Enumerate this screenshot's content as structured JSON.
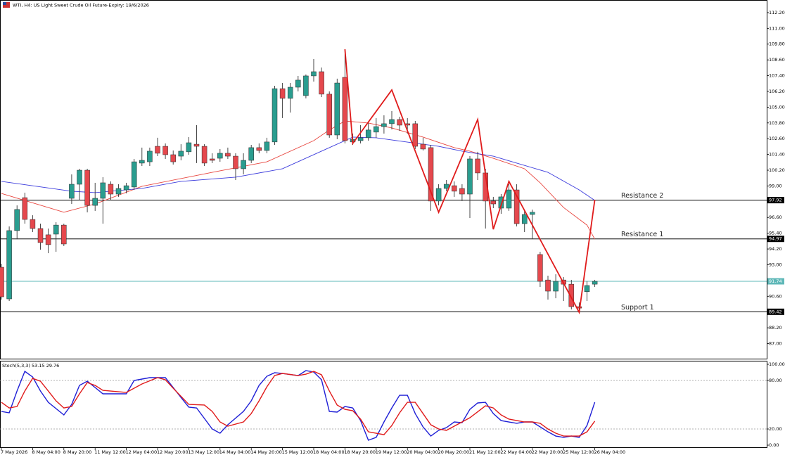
{
  "chart_data": [
    {
      "type": "candlestick",
      "title": "WTI, H4:  US Light Sweet Crude Oil Future-Expiry: 19/6/2026",
      "categories": [
        "7 May 2026",
        null,
        null,
        null,
        "8 May 04:00",
        null,
        null,
        null,
        "8 May 20:00",
        null,
        null,
        null,
        "11 May 12:00",
        null,
        null,
        null,
        "12 May 04:00",
        null,
        null,
        null,
        "12 May 20:00",
        null,
        null,
        null,
        "13 May 12:00",
        null,
        null,
        null,
        "14 May 04:00",
        null,
        null,
        null,
        "14 May 20:00",
        null,
        null,
        null,
        "15 May 12:00",
        null,
        null,
        null,
        "18 May 04:00",
        null,
        null,
        null,
        "18 May 20:00",
        null,
        null,
        null,
        "19 May 12:00",
        null,
        null,
        null,
        "20 May 04:00",
        null,
        null,
        null,
        "20 May 20:00",
        null,
        null,
        null,
        "21 May 12:00",
        null,
        null,
        null,
        "22 May 04:00",
        null,
        null,
        null,
        "22 May 20:00",
        null,
        null,
        null,
        "25 May 12:00",
        null,
        null,
        null,
        "26 May 04:00"
      ],
      "open": [
        92.81,
        90.4,
        95.6,
        98.11,
        96.45,
        95.76,
        95.28,
        95.33,
        96.02,
        98.06,
        99.13,
        100.2,
        97.52,
        98.06,
        99.13,
        98.38,
        98.7,
        98.92,
        100.74,
        100.84,
        102.02,
        102.02,
        101.38,
        101.27,
        101.6,
        102.18,
        102.02,
        101.06,
        101.11,
        101.49,
        101.27,
        100.31,
        100.95,
        101.92,
        101.7,
        102.35,
        106.41,
        105.67,
        106.52,
        105.88,
        107.38,
        107.7,
        105.99,
        102.88,
        107.27,
        102.35,
        102.45,
        102.67,
        103.1,
        103.52,
        103.74,
        104.06,
        103.74,
        103.74,
        102.18,
        101.92,
        97.85,
        98.81,
        99.02,
        98.81,
        98.38,
        101.06,
        99.99,
        97.85,
        97.31,
        97.31,
        98.7,
        96.13,
        96.83,
        93.78,
        91.84,
        90.99,
        91.84,
        91.52,
        89.81,
        90.95,
        91.52
      ],
      "high": [
        93.08,
        95.92,
        97.52,
        98.49,
        96.77,
        96.13,
        95.76,
        96.24,
        96.13,
        99.88,
        100.31,
        100.31,
        99.24,
        99.67,
        99.35,
        99.13,
        99.24,
        101.06,
        101.92,
        101.92,
        102.67,
        102.24,
        101.7,
        102.18,
        102.72,
        103.63,
        102.18,
        101.49,
        101.81,
        101.92,
        101.49,
        101.49,
        102.13,
        102.24,
        102.67,
        106.63,
        106.84,
        106.84,
        107.38,
        107.49,
        108.66,
        108.02,
        106.2,
        107.17,
        109.41,
        102.99,
        103.63,
        103.84,
        104.17,
        104.38,
        104.7,
        104.27,
        104.17,
        103.95,
        102.67,
        102.13,
        99.13,
        99.45,
        99.35,
        99.13,
        101.27,
        101.6,
        100.31,
        98.17,
        98.38,
        99.13,
        99.13,
        97.1,
        97.2,
        93.99,
        92.17,
        92.28,
        92.06,
        91.85,
        90.13,
        91.74,
        91.85
      ],
      "low": [
        90.35,
        90.24,
        94.95,
        96.13,
        95.49,
        94.15,
        93.88,
        93.99,
        94.42,
        97.63,
        97.9,
        96.99,
        97.1,
        96.13,
        97.9,
        98.17,
        98.44,
        98.7,
        100.52,
        100.52,
        101.27,
        101.06,
        100.63,
        100.95,
        101.38,
        100.74,
        100.52,
        100.74,
        100.84,
        101.06,
        99.45,
        99.88,
        100.74,
        101.49,
        101.49,
        102.13,
        104.17,
        104.59,
        106.2,
        105.67,
        106.95,
        105.77,
        102.67,
        102.56,
        102.24,
        102.13,
        102.24,
        102.45,
        102.67,
        102.99,
        103.31,
        103.2,
        102.99,
        101.81,
        101.7,
        97.1,
        97.52,
        98.6,
        98.17,
        97.85,
        96.56,
        99.45,
        95.76,
        97.31,
        96.88,
        97.1,
        95.92,
        95.49,
        94.95,
        91.31,
        90.35,
        90.45,
        90.24,
        89.6,
        89.38,
        90.24,
        91.31
      ],
      "close": [
        90.56,
        95.6,
        97.21,
        96.45,
        95.76,
        94.69,
        94.53,
        96.02,
        94.58,
        99.13,
        100.2,
        97.52,
        98.06,
        99.24,
        98.38,
        98.81,
        99.02,
        100.84,
        100.95,
        101.65,
        101.49,
        101.38,
        100.84,
        101.65,
        102.29,
        102.02,
        100.74,
        100.95,
        101.49,
        101.27,
        100.31,
        100.95,
        101.92,
        101.7,
        102.35,
        106.41,
        105.67,
        106.52,
        107.06,
        107.38,
        107.7,
        105.99,
        102.88,
        106.84,
        102.45,
        102.56,
        102.67,
        103.26,
        103.52,
        103.74,
        104.06,
        103.63,
        103.63,
        102.02,
        101.81,
        97.85,
        98.81,
        99.13,
        98.6,
        98.38,
        101.06,
        99.99,
        97.85,
        97.63,
        98.17,
        98.7,
        96.13,
        96.83,
        97.0,
        91.74,
        90.99,
        91.74,
        91.52,
        89.81,
        89.7,
        91.42,
        91.74
      ],
      "up_color": "#2a9d8f",
      "down_color": "#e5484d",
      "ylim": [
        85.85,
        113.16
      ],
      "yticks": [
        {
          "value": 112.2,
          "label": "112.20"
        },
        {
          "value": 111,
          "label": "111.00"
        },
        {
          "value": 109.8,
          "label": "109.80"
        },
        {
          "value": 108.6,
          "label": "108.60"
        },
        {
          "value": 107.4,
          "label": "107.40"
        },
        {
          "value": 106.2,
          "label": "106.20"
        },
        {
          "value": 105,
          "label": "105.00"
        },
        {
          "value": 103.8,
          "label": "103.80"
        },
        {
          "value": 102.6,
          "label": "102.60"
        },
        {
          "value": 101.4,
          "label": "101.40"
        },
        {
          "value": 100.2,
          "label": "100.20"
        },
        {
          "value": 99,
          "label": "99.00"
        },
        {
          "value": 96.6,
          "label": "96.60"
        },
        {
          "value": 95.4,
          "label": "95.40"
        },
        {
          "value": 94.2,
          "label": "94.20"
        },
        {
          "value": 93,
          "label": "93.00"
        },
        {
          "value": 90.6,
          "label": "90.60"
        },
        {
          "value": 88.2,
          "label": "88.20"
        },
        {
          "value": 87,
          "label": "87.00"
        }
      ],
      "overlays": [
        {
          "color": "#e8463f",
          "x": [
            0,
            8,
            12,
            18,
            27,
            34,
            40,
            42,
            44,
            47,
            50,
            54,
            58,
            60,
            63,
            67,
            69,
            72,
            75,
            76
          ],
          "values": [
            98.43,
            97.0,
            97.63,
            98.97,
            100.04,
            100.84,
            102.45,
            103.26,
            103.95,
            103.79,
            103.42,
            102.72,
            101.92,
            101.65,
            101.11,
            100.31,
            99.24,
            97.36,
            96.02,
            94.95
          ]
        },
        {
          "color": "#3b3bdc",
          "x": [
            0,
            9,
            12,
            18,
            23,
            30,
            36,
            41,
            45,
            48,
            52,
            56,
            59,
            63,
            66,
            70,
            74,
            76
          ],
          "values": [
            99.35,
            98.6,
            98.49,
            98.81,
            99.35,
            99.67,
            100.31,
            101.65,
            102.72,
            102.67,
            102.34,
            102.02,
            101.65,
            101.27,
            100.74,
            100.04,
            98.7,
            97.9
          ]
        }
      ],
      "zigzag": {
        "color": "#e01b1b",
        "x": [
          44,
          45,
          50,
          56,
          61,
          63,
          65,
          74,
          76
        ],
        "values": [
          109.41,
          102.24,
          106.31,
          97.0,
          104.06,
          95.7,
          99.35,
          89.38,
          97.95
        ]
      },
      "levels": [
        {
          "name": "Resistance 2",
          "value": 97.92,
          "color": "#000000"
        },
        {
          "name": "Resistance 1",
          "value": 94.97,
          "color": "#000000"
        },
        {
          "value": 91.74,
          "color": "#5fb8b8"
        },
        {
          "name": "Support 1",
          "value": 89.42,
          "color": "#000000"
        }
      ]
    },
    {
      "type": "line",
      "title": "Stoch(5,3,3) 53.15 29.76",
      "ylim": [
        -2.6,
        103.5
      ],
      "yticks": [
        {
          "value": 100,
          "label": "100.00"
        },
        {
          "value": 80,
          "label": "80.00"
        },
        {
          "value": 20,
          "label": "20.00"
        },
        {
          "value": 0,
          "label": "0.00"
        }
      ],
      "levels": [
        80,
        20
      ],
      "series": [
        {
          "color": "#1f1fd6",
          "x": [
            0,
            1,
            2,
            3,
            4,
            5,
            6,
            8,
            9,
            10,
            11,
            13,
            16,
            17,
            19,
            21,
            23,
            24,
            25,
            27,
            28,
            29,
            31,
            32,
            33,
            34,
            35,
            36,
            38,
            39,
            40,
            41,
            42,
            43,
            44,
            45,
            46,
            47,
            48,
            49,
            50,
            51,
            52,
            53,
            54,
            55,
            56,
            57,
            58,
            59,
            60,
            61,
            62,
            63,
            64,
            65,
            66,
            67,
            68,
            69,
            70,
            71,
            72,
            73,
            74,
            75,
            76
          ],
          "values": [
            41.7,
            40,
            67,
            91.3,
            84.3,
            67,
            53,
            37.4,
            50.4,
            73.9,
            79.1,
            63.5,
            63.5,
            80,
            83.5,
            83.5,
            59,
            47,
            46,
            20,
            14.8,
            25.2,
            41.7,
            54.8,
            73.9,
            85.2,
            89.6,
            88.7,
            86,
            92.2,
            90.4,
            80.9,
            41.7,
            40.9,
            47.8,
            46,
            30.4,
            6.1,
            9.6,
            28.7,
            46,
            61.7,
            61.7,
            39.1,
            22.6,
            11.3,
            18.3,
            21.7,
            28.7,
            27.8,
            44.3,
            52.2,
            53,
            39.1,
            30.4,
            28.7,
            27,
            28.7,
            28.7,
            22.6,
            16.5,
            11.3,
            9.6,
            11.3,
            9.6,
            24.3,
            53.15
          ]
        },
        {
          "color": "#e01b1b",
          "x": [
            0,
            1,
            2,
            3,
            4,
            5,
            6,
            7,
            8,
            9,
            10,
            11,
            12,
            13,
            16,
            18,
            20,
            21,
            22,
            24,
            26,
            27,
            28,
            29,
            31,
            32,
            33,
            34,
            35,
            36,
            38,
            39,
            40,
            41,
            42,
            43,
            44,
            45,
            46,
            47,
            49,
            50,
            51,
            52,
            53,
            54,
            55,
            56,
            57,
            58,
            60,
            62,
            63,
            64,
            65,
            67,
            68,
            69,
            70,
            71,
            72,
            73,
            74,
            75,
            76
          ],
          "values": [
            53,
            46,
            47.8,
            67,
            82.6,
            79.1,
            67,
            54.8,
            46,
            47.8,
            63.5,
            77.4,
            73.9,
            67.8,
            65.2,
            75.7,
            83.5,
            80.9,
            70.4,
            50.4,
            49.6,
            41.7,
            28.7,
            23.5,
            28.7,
            39.1,
            54.8,
            72.2,
            86.1,
            88.7,
            86.1,
            87.8,
            91.3,
            87,
            67,
            49.6,
            44.3,
            42.6,
            32.2,
            16.5,
            13,
            24.3,
            40,
            53,
            53,
            39.1,
            25.2,
            20,
            18.3,
            23.5,
            33.9,
            48.7,
            46,
            37.4,
            32.2,
            28.7,
            28.7,
            27,
            20,
            14.8,
            11.3,
            11.3,
            11.3,
            16.5,
            29.76
          ]
        }
      ]
    }
  ]
}
